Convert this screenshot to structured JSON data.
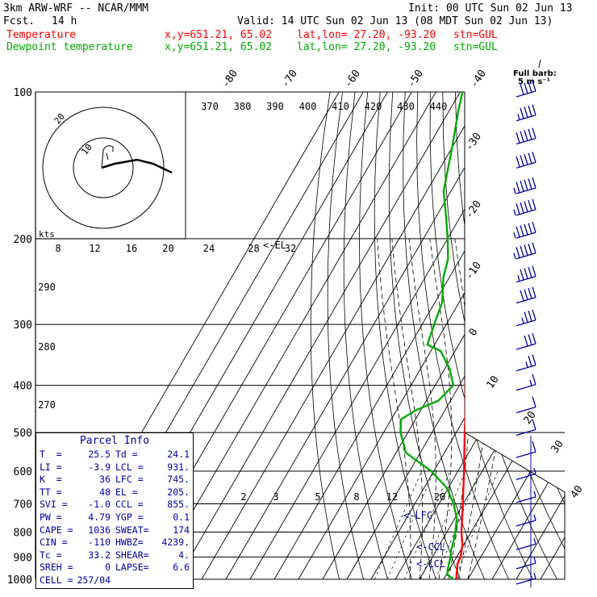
{
  "header": {
    "model": "3km ARW-WRF -- NCAR/MMM",
    "init": "Init: 00 UTC Sun 02 Jun 13",
    "fcst_label": "Fcst.",
    "fcst_value": "14 h",
    "valid": "Valid: 14 UTC Sun 02 Jun 13 (08 MDT Sun 02 Jun 13)",
    "temp_label": "Temperature",
    "dew_label": "Dewpoint temperature",
    "xy": "x,y=651.21, 65.02",
    "latlon": "lat,lon= 27.20, -93.20",
    "stn": "stn=GUL"
  },
  "colors": {
    "temperature": "#ff0000",
    "dewpoint": "#00aa00",
    "barbs": "#0000aa",
    "axes": "#000000"
  },
  "parcel_info": {
    "title": "Parcel Info",
    "rows": [
      {
        "k1": "T  =",
        "v1": "25.5",
        "k2": "Td =",
        "v2": "24.1"
      },
      {
        "k1": "LI =",
        "v1": "-3.9",
        "k2": "LCL =",
        "v2": "931."
      },
      {
        "k1": "K  =",
        "v1": "36",
        "k2": "LFC =",
        "v2": "745."
      },
      {
        "k1": "TT =",
        "v1": "48",
        "k2": "EL =",
        "v2": "205."
      },
      {
        "k1": "SVI =",
        "v1": "-1.0",
        "k2": "CCL =",
        "v2": "855."
      },
      {
        "k1": "PW =",
        "v1": "4.79",
        "k2": "YGP =",
        "v2": "0.1"
      },
      {
        "k1": "CAPE =",
        "v1": "1036",
        "k2": "SWEAT=",
        "v2": "174"
      },
      {
        "k1": "CIN =",
        "v1": "-110",
        "k2": "HWBZ=",
        "v2": "4239."
      },
      {
        "k1": "Tc =",
        "v1": "33.2",
        "k2": "SHEAR=",
        "v2": "4."
      },
      {
        "k1": "SREH =",
        "v1": "0",
        "k2": "LAPSE=",
        "v2": "6.6"
      },
      {
        "k1": "CELL =",
        "v1": "257/04",
        "k2": "",
        "v2": ""
      }
    ]
  },
  "chart_data": {
    "type": "line",
    "subtype": "skew-T log-P sounding",
    "y_axis": {
      "label": "",
      "unit": "hPa",
      "scale": "log",
      "ticks": [
        100,
        200,
        300,
        400,
        500,
        600,
        700,
        800,
        900,
        1000
      ],
      "ylim": [
        1000,
        100
      ]
    },
    "temperature_ticks_deg_c": [
      -80,
      -70,
      -60,
      -50,
      -40,
      -30,
      -20,
      -10,
      0,
      10,
      20,
      30,
      40
    ],
    "theta_ticks": [
      "370",
      "380",
      "390",
      "400",
      "410",
      "420",
      "430",
      "440"
    ],
    "theta_lower_ticks": [
      "290",
      "280",
      "270"
    ],
    "mixing_ratio_ticks": [
      "2",
      "3",
      "5",
      "8",
      "12",
      "20"
    ],
    "hodograph": {
      "units_label": "kts",
      "ring_labels": [
        "20",
        "10"
      ],
      "speed_ticks": [
        "8",
        "12",
        "16",
        "20",
        "24",
        "28",
        "32"
      ]
    },
    "levels_annotations": [
      "<-EL",
      "<-LFC",
      "<-CCL",
      "<-LCL"
    ],
    "barb_legend": [
      "Full barb:",
      "5 m s⁻¹"
    ],
    "series": [
      {
        "name": "Temperature",
        "color": "#ff0000",
        "points": [
          [
            1000,
            25.5
          ],
          [
            990,
            24.8
          ],
          [
            970,
            23.8
          ],
          [
            950,
            23.0
          ],
          [
            930,
            22.0
          ],
          [
            900,
            21.6
          ],
          [
            850,
            19.5
          ],
          [
            800,
            16.0
          ],
          [
            750,
            13.0
          ],
          [
            700,
            9.8
          ],
          [
            650,
            6.3
          ],
          [
            600,
            2.5
          ],
          [
            550,
            -1.8
          ],
          [
            500,
            -6.5
          ],
          [
            450,
            -11.5
          ],
          [
            400,
            -17.5
          ],
          [
            350,
            -24.0
          ],
          [
            300,
            -31.5
          ],
          [
            250,
            -40.5
          ],
          [
            200,
            -51.5
          ],
          [
            175,
            -58.0
          ],
          [
            150,
            -64.5
          ],
          [
            130,
            -71.0
          ],
          [
            115,
            -75.0
          ],
          [
            100,
            -76.0
          ]
        ]
      },
      {
        "name": "Dewpoint temperature",
        "color": "#00aa00",
        "points": [
          [
            1000,
            24.1
          ],
          [
            990,
            22.5
          ],
          [
            980,
            20.5
          ],
          [
            960,
            19.5
          ],
          [
            930,
            18.5
          ],
          [
            900,
            17.5
          ],
          [
            870,
            16.0
          ],
          [
            850,
            15.5
          ],
          [
            800,
            13.5
          ],
          [
            750,
            10.8
          ],
          [
            700,
            6.0
          ],
          [
            650,
            -0.5
          ],
          [
            600,
            -11.0
          ],
          [
            550,
            -26.0
          ],
          [
            500,
            -33.0
          ],
          [
            470,
            -36.0
          ],
          [
            450,
            -32.0
          ],
          [
            430,
            -25.0
          ],
          [
            400,
            -22.5
          ],
          [
            370,
            -28.0
          ],
          [
            340,
            -36.0
          ],
          [
            330,
            -43.0
          ],
          [
            300,
            -45.0
          ],
          [
            270,
            -47.0
          ],
          [
            240,
            -52.5
          ],
          [
            220,
            -55.0
          ],
          [
            200,
            -60.0
          ],
          [
            180,
            -66.0
          ],
          [
            160,
            -73.0
          ],
          [
            130,
            -80.0
          ],
          [
            110,
            -86.0
          ],
          [
            100,
            -89.0
          ]
        ]
      }
    ],
    "wind_barbs": [
      {
        "p": 100,
        "flags": 0,
        "full": 4,
        "half": 0
      },
      {
        "p": 112,
        "flags": 0,
        "full": 4,
        "half": 1
      },
      {
        "p": 125,
        "flags": 0,
        "full": 5,
        "half": 0
      },
      {
        "p": 140,
        "flags": 0,
        "full": 5,
        "half": 0
      },
      {
        "p": 158,
        "flags": 0,
        "full": 5,
        "half": 1
      },
      {
        "p": 175,
        "flags": 0,
        "full": 5,
        "half": 1
      },
      {
        "p": 195,
        "flags": 0,
        "full": 5,
        "half": 1
      },
      {
        "p": 215,
        "flags": 0,
        "full": 5,
        "half": 1
      },
      {
        "p": 240,
        "flags": 0,
        "full": 4,
        "half": 1
      },
      {
        "p": 265,
        "flags": 0,
        "full": 4,
        "half": 0
      },
      {
        "p": 295,
        "flags": 0,
        "full": 3,
        "half": 1
      },
      {
        "p": 330,
        "flags": 0,
        "full": 3,
        "half": 0
      },
      {
        "p": 365,
        "flags": 0,
        "full": 2,
        "half": 1
      },
      {
        "p": 400,
        "flags": 0,
        "full": 1,
        "half": 1
      },
      {
        "p": 445,
        "flags": 0,
        "full": 1,
        "half": 0
      },
      {
        "p": 495,
        "flags": 0,
        "full": 1,
        "half": 0
      },
      {
        "p": 550,
        "flags": 0,
        "full": 1,
        "half": 0
      },
      {
        "p": 610,
        "flags": 0,
        "full": 0,
        "half": 1
      },
      {
        "p": 680,
        "flags": 0,
        "full": 0,
        "half": 1
      },
      {
        "p": 760,
        "flags": 0,
        "full": 0,
        "half": 1
      },
      {
        "p": 850,
        "flags": 0,
        "full": 0,
        "half": 1
      },
      {
        "p": 930,
        "flags": 0,
        "full": 0,
        "half": 1
      },
      {
        "p": 1000,
        "flags": 0,
        "full": 0,
        "half": 1
      }
    ]
  }
}
